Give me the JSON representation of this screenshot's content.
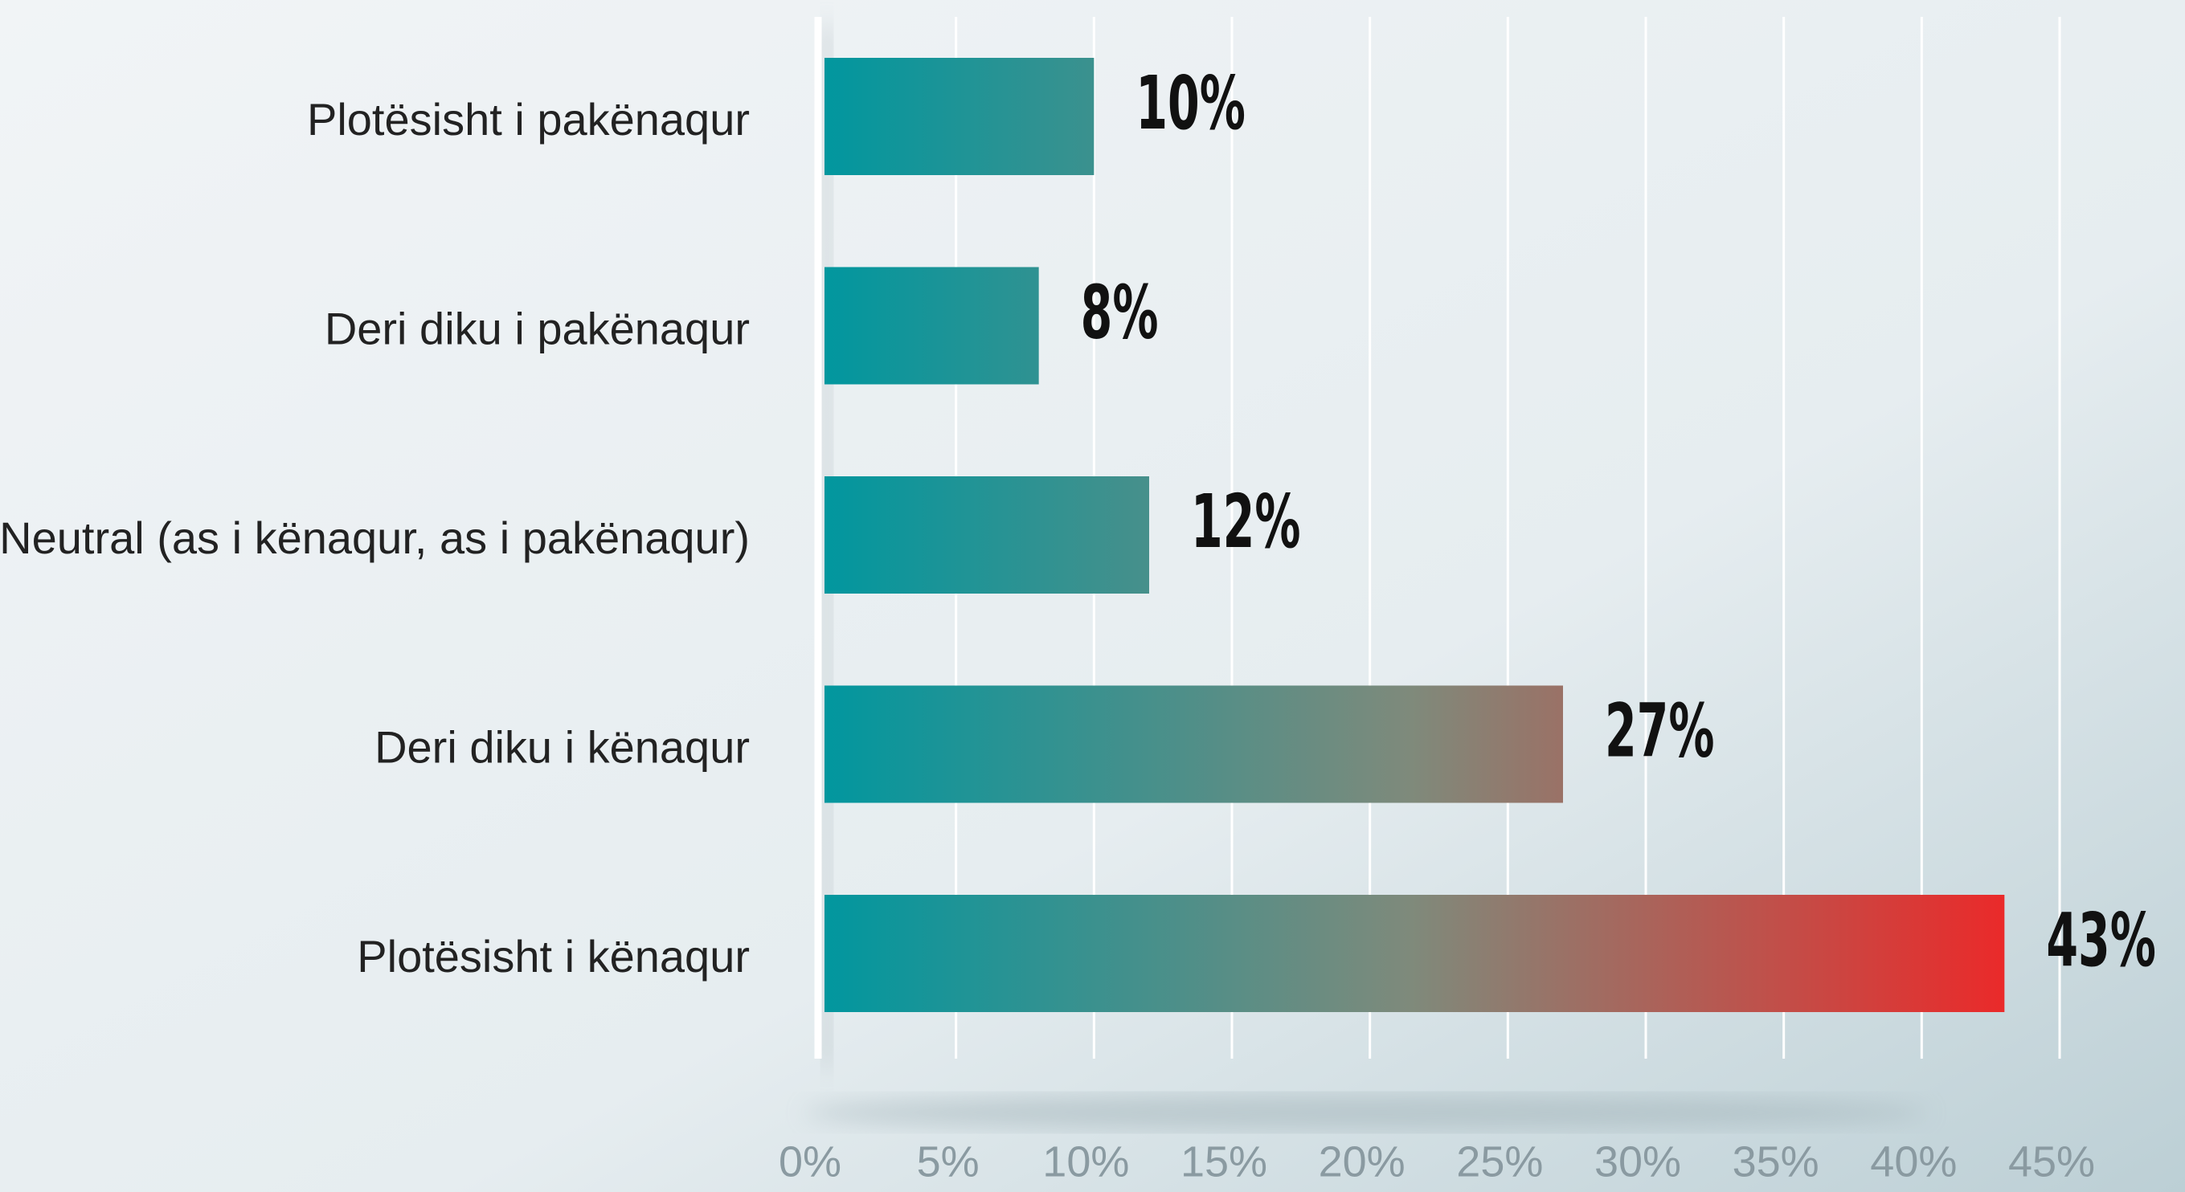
{
  "chart_data": {
    "type": "bar",
    "orientation": "horizontal",
    "categories": [
      "Plotësisht i pakënaqur",
      "Deri diku i pakënaqur",
      "Neutral (as i kënaqur, as i pakënaqur)",
      "Deri diku i kënaqur",
      "Plotësisht i kënaqur"
    ],
    "values": [
      10,
      8,
      12,
      27,
      43
    ],
    "value_labels": [
      "10%",
      "8%",
      "12%",
      "27%",
      "43%"
    ],
    "colors": [
      "#00979f",
      "#7f8a7b",
      "#ea2a2a"
    ],
    "xlim": [
      0,
      45
    ],
    "xticks": [
      {
        "value": 0,
        "label": "0%"
      },
      {
        "value": 5,
        "label": "5%"
      },
      {
        "value": 10,
        "label": "10%"
      },
      {
        "value": 15,
        "label": "15%"
      },
      {
        "value": 20,
        "label": "20%"
      },
      {
        "value": 25,
        "label": "25%"
      },
      {
        "value": 30,
        "label": "30%"
      },
      {
        "value": 35,
        "label": "35%"
      },
      {
        "value": 40,
        "label": "40%"
      },
      {
        "value": 45,
        "label": "45%"
      }
    ],
    "grid": true
  }
}
